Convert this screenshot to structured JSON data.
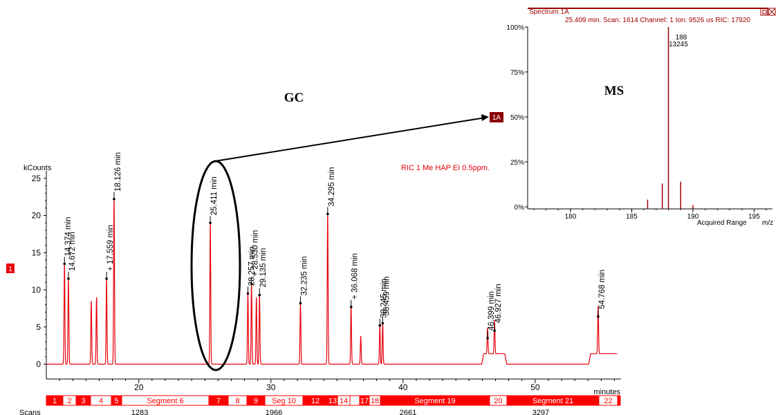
{
  "gc": {
    "y_unit": "kCounts",
    "x_unit": "minutes",
    "legend": "RIC 1 Me HAP EI 0.5ppm.",
    "trace_badge": "1",
    "yticks": [
      "0",
      "5",
      "10",
      "15",
      "20",
      "25"
    ],
    "xticks": [
      "20",
      "30",
      "40",
      "50"
    ],
    "scans_label": "Scans",
    "scans": [
      "1283",
      "1966",
      "2661",
      "3297"
    ]
  },
  "labels": {
    "gc": "GC",
    "ms": "MS",
    "marker": "1A"
  },
  "segments": [
    {
      "label": "1",
      "fill": "red"
    },
    {
      "label": "2",
      "fill": "white"
    },
    {
      "label": "3",
      "fill": "red"
    },
    {
      "label": "4",
      "fill": "white"
    },
    {
      "label": "5",
      "fill": "red"
    },
    {
      "label": "Segment 6",
      "fill": "white"
    },
    {
      "label": "7",
      "fill": "red"
    },
    {
      "label": "8",
      "fill": "white"
    },
    {
      "label": "9",
      "fill": "red"
    },
    {
      "label": "Seg 10",
      "fill": "white"
    },
    {
      "label": "12",
      "fill": "red"
    },
    {
      "label": "13",
      "fill": "red"
    },
    {
      "label": "14",
      "fill": "white"
    },
    {
      "label": "",
      "fill": "white"
    },
    {
      "label": "17",
      "fill": "red"
    },
    {
      "label": "18",
      "fill": "white"
    },
    {
      "label": "Segment 19",
      "fill": "red"
    },
    {
      "label": "20",
      "fill": "white"
    },
    {
      "label": "Segment 21",
      "fill": "red"
    },
    {
      "label": "22",
      "fill": "white"
    },
    {
      "label": "",
      "fill": "red"
    }
  ],
  "ms": {
    "title": "Spectrum 1A",
    "info": "25.409 min. Scan: 1614 Channel: 1 Ion: 9526 us RIC: 17920",
    "yticks": [
      "0%",
      "25%",
      "50%",
      "75%",
      "100%"
    ],
    "xticks": [
      "180",
      "185",
      "190",
      "195"
    ],
    "x_caption": "Acquired Range",
    "x_unit": "m/z",
    "peak_label_mz": "188",
    "peak_label_counts": "13245"
  },
  "colors": {
    "trace": "#e8000b",
    "segment": "#ff0000",
    "axis": "#000000",
    "marker_bg": "#8b0000",
    "spectrum": "#a00000"
  },
  "chart_data": [
    {
      "type": "line",
      "name": "GC chromatogram",
      "xlabel": "minutes",
      "ylabel": "kCounts",
      "xlim": [
        13,
        56.5
      ],
      "ylim": [
        -2,
        26
      ],
      "xticks": [
        20,
        30,
        40,
        50
      ],
      "yticks": [
        0,
        5,
        10,
        15,
        20,
        25
      ],
      "baseline": 0,
      "legend": "RIC 1 Me HAP EI 0.5ppm.",
      "peaks": [
        {
          "t": 14.374,
          "height": 13.5,
          "label": "14.374 min"
        },
        {
          "t": 14.672,
          "height": 11.5,
          "label": "14.672 min"
        },
        {
          "t": 16.4,
          "height": 8.5,
          "label": ""
        },
        {
          "t": 16.8,
          "height": 9.0,
          "label": ""
        },
        {
          "t": 17.559,
          "height": 11.5,
          "label": "+ 17.559 min"
        },
        {
          "t": 18.126,
          "height": 22.2,
          "label": "18.126 min"
        },
        {
          "t": 25.411,
          "height": 19.0,
          "label": "25.411 min"
        },
        {
          "t": 28.257,
          "height": 9.5,
          "label": "28.257 min"
        },
        {
          "t": 28.53,
          "height": 10.8,
          "label": "+ 28.530 min"
        },
        {
          "t": 28.9,
          "height": 9.0,
          "label": ""
        },
        {
          "t": 29.135,
          "height": 9.3,
          "label": "29.135 min"
        },
        {
          "t": 32.235,
          "height": 8.2,
          "label": "32.235 min"
        },
        {
          "t": 34.295,
          "height": 20.2,
          "label": "34.295 min"
        },
        {
          "t": 36.068,
          "height": 7.7,
          "label": "+ 36.068 min"
        },
        {
          "t": 36.8,
          "height": 3.8,
          "label": ""
        },
        {
          "t": 38.245,
          "height": 5.2,
          "label": "38.245 min"
        },
        {
          "t": 38.459,
          "height": 5.5,
          "label": "38.459 min"
        },
        {
          "t": 46.399,
          "height": 3.5,
          "label": "46.399 min"
        },
        {
          "t": 46.927,
          "height": 4.5,
          "label": "46.927 min"
        },
        {
          "t": 54.768,
          "height": 6.4,
          "label": "54.768 min"
        }
      ],
      "elevated_baseline": [
        {
          "from": 46.1,
          "to": 47.7,
          "level": 1.4
        },
        {
          "from": 54.2,
          "to": 56.2,
          "level": 1.4
        }
      ]
    },
    {
      "type": "bar",
      "name": "Spectrum 1A",
      "xlabel": "m/z",
      "ylabel": "%",
      "xlim": [
        176.5,
        196.5
      ],
      "ylim": [
        0,
        100
      ],
      "xticks": [
        180,
        185,
        190,
        195
      ],
      "yticks": [
        0,
        25,
        50,
        75,
        100
      ],
      "points": [
        {
          "mz": 186.3,
          "pct": 4
        },
        {
          "mz": 187.5,
          "pct": 13
        },
        {
          "mz": 188.0,
          "pct": 100
        },
        {
          "mz": 189.0,
          "pct": 14
        },
        {
          "mz": 190.0,
          "pct": 1
        }
      ],
      "base_peak": {
        "mz": 188,
        "counts": 13245
      }
    }
  ]
}
